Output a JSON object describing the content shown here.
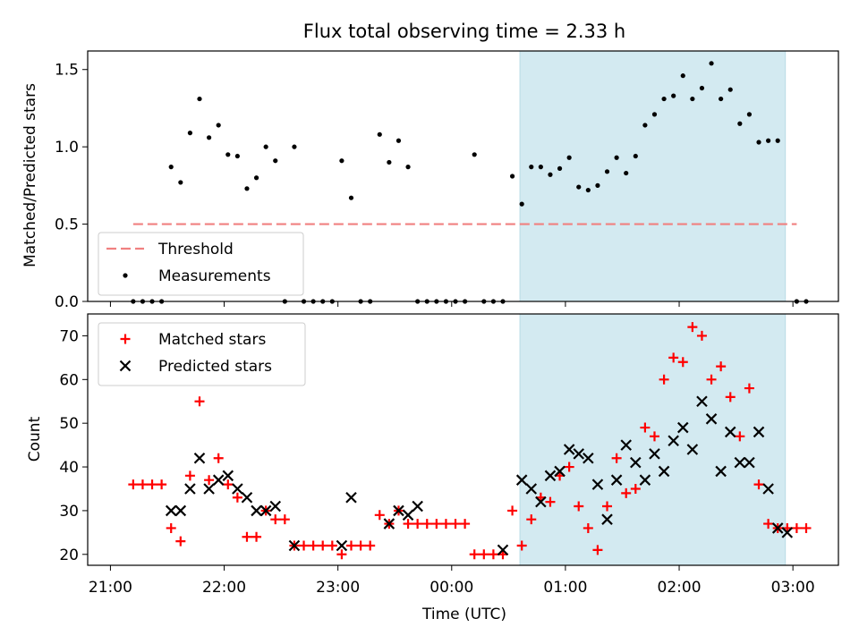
{
  "chart_data": [
    {
      "type": "scatter",
      "title": "Flux total observing time = 2.33 h",
      "ylabel": "Matched/Predicted stars",
      "xlabel": "",
      "ylim": [
        0,
        1.62
      ],
      "yticks": [
        0.0,
        0.5,
        1.0,
        1.5
      ],
      "ytick_labels": [
        "0.0",
        "0.5",
        "1.0",
        "1.5"
      ],
      "x_axis_hours_range": [
        -3.2,
        3.4
      ],
      "shaded_region": {
        "from": "00:36",
        "to": "02:56",
        "color": "#d3eaf1"
      },
      "legend": {
        "position": "lower-left",
        "entries": [
          "Threshold",
          "Measurements"
        ]
      },
      "series": [
        {
          "name": "Threshold",
          "kind": "dashed-line",
          "color": "#f08080",
          "x": [
            "21:12",
            "03:02"
          ],
          "y": [
            0.5,
            0.5
          ]
        },
        {
          "name": "Measurements",
          "kind": "points",
          "color": "#000000",
          "x": [
            "21:12",
            "21:17",
            "21:22",
            "21:27",
            "21:32",
            "21:37",
            "21:42",
            "21:47",
            "21:52",
            "21:57",
            "22:02",
            "22:07",
            "22:12",
            "22:17",
            "22:22",
            "22:27",
            "22:32",
            "22:37",
            "22:42",
            "22:47",
            "22:52",
            "22:57",
            "23:02",
            "23:07",
            "23:12",
            "23:17",
            "23:22",
            "23:27",
            "23:32",
            "23:37",
            "23:42",
            "23:47",
            "23:52",
            "23:57",
            "00:02",
            "00:07",
            "00:12",
            "00:17",
            "00:22",
            "00:27",
            "00:32",
            "00:37",
            "00:42",
            "00:47",
            "00:52",
            "00:57",
            "01:02",
            "01:07",
            "01:12",
            "01:17",
            "01:22",
            "01:27",
            "01:32",
            "01:37",
            "01:42",
            "01:47",
            "01:52",
            "01:57",
            "02:02",
            "02:07",
            "02:12",
            "02:17",
            "02:22",
            "02:27",
            "02:32",
            "02:37",
            "02:42",
            "02:47",
            "02:52",
            "02:57",
            "03:02",
            "03:07"
          ],
          "y": [
            0,
            0,
            0,
            0,
            0.87,
            0.77,
            1.09,
            1.31,
            1.06,
            1.14,
            0.95,
            0.94,
            0.73,
            0.8,
            1.0,
            0.91,
            0,
            1.0,
            0,
            0,
            0,
            0,
            0.91,
            0.67,
            0,
            0,
            1.08,
            0.9,
            1.04,
            0.87,
            0,
            0,
            0,
            0,
            0,
            0,
            0.95,
            0,
            0,
            0,
            0.81,
            0.63,
            0.87,
            0.87,
            0.82,
            0.86,
            0.93,
            0.74,
            0.72,
            0.75,
            0.84,
            0.93,
            0.83,
            0.94,
            1.14,
            1.21,
            1.31,
            1.33,
            1.46,
            1.31,
            1.38,
            1.54,
            1.31,
            1.37,
            1.15,
            1.21,
            1.03,
            1.04,
            1.04,
            null,
            0,
            0
          ]
        }
      ]
    },
    {
      "type": "scatter",
      "title": "",
      "ylabel": "Count",
      "xlabel": "Time (UTC)",
      "ylim": [
        17.5,
        75
      ],
      "yticks": [
        20,
        30,
        40,
        50,
        60,
        70
      ],
      "ytick_labels": [
        "20",
        "30",
        "40",
        "50",
        "60",
        "70"
      ],
      "x_axis_hours_range": [
        -3.2,
        3.4
      ],
      "xticks": [
        "21:00",
        "22:00",
        "23:00",
        "00:00",
        "01:00",
        "02:00",
        "03:00"
      ],
      "shaded_region": {
        "from": "00:36",
        "to": "02:56",
        "color": "#d3eaf1"
      },
      "legend": {
        "position": "upper-left",
        "entries": [
          "Matched stars",
          "Predicted stars"
        ]
      },
      "series": [
        {
          "name": "Matched stars",
          "marker": "+",
          "color": "#ff0000",
          "x": [
            "21:12",
            "21:17",
            "21:22",
            "21:27",
            "21:32",
            "21:37",
            "21:42",
            "21:47",
            "21:52",
            "21:57",
            "22:02",
            "22:07",
            "22:12",
            "22:17",
            "22:22",
            "22:27",
            "22:32",
            "22:37",
            "22:42",
            "22:47",
            "22:52",
            "22:57",
            "23:02",
            "23:07",
            "23:12",
            "23:17",
            "23:22",
            "23:27",
            "23:32",
            "23:37",
            "23:42",
            "23:47",
            "23:52",
            "23:57",
            "00:02",
            "00:07",
            "00:12",
            "00:17",
            "00:22",
            "00:27",
            "00:32",
            "00:37",
            "00:42",
            "00:47",
            "00:52",
            "00:57",
            "01:02",
            "01:07",
            "01:12",
            "01:17",
            "01:22",
            "01:27",
            "01:32",
            "01:37",
            "01:42",
            "01:47",
            "01:52",
            "01:57",
            "02:02",
            "02:07",
            "02:12",
            "02:17",
            "02:22",
            "02:27",
            "02:32",
            "02:37",
            "02:42",
            "02:47",
            "02:52",
            "02:57",
            "03:02",
            "03:07"
          ],
          "y": [
            36,
            36,
            36,
            36,
            26,
            23,
            38,
            55,
            37,
            42,
            36,
            33,
            24,
            24,
            30,
            28,
            28,
            22,
            22,
            22,
            22,
            22,
            20,
            22,
            22,
            22,
            29,
            27,
            30,
            27,
            27,
            27,
            27,
            27,
            27,
            27,
            20,
            20,
            20,
            20,
            30,
            22,
            28,
            33,
            32,
            38,
            40,
            31,
            26,
            21,
            31,
            42,
            34,
            35,
            49,
            47,
            60,
            65,
            64,
            72,
            70,
            60,
            63,
            56,
            47,
            58,
            36,
            27,
            26,
            26,
            26,
            26
          ]
        },
        {
          "name": "Predicted stars",
          "marker": "x",
          "color": "#000000",
          "x": [
            "21:32",
            "21:37",
            "21:42",
            "21:47",
            "21:52",
            "21:57",
            "22:02",
            "22:07",
            "22:12",
            "22:17",
            "22:22",
            "22:27",
            "22:37",
            "23:02",
            "23:07",
            "23:27",
            "23:32",
            "23:37",
            "23:42",
            "00:27",
            "00:37",
            "00:42",
            "00:47",
            "00:52",
            "00:57",
            "01:02",
            "01:07",
            "01:12",
            "01:17",
            "01:22",
            "01:27",
            "01:32",
            "01:37",
            "01:42",
            "01:47",
            "01:52",
            "01:57",
            "02:02",
            "02:07",
            "02:12",
            "02:17",
            "02:22",
            "02:27",
            "02:32",
            "02:37",
            "02:42",
            "02:47",
            "02:52",
            "02:57"
          ],
          "y": [
            30,
            30,
            35,
            42,
            35,
            37,
            38,
            35,
            33,
            30,
            30,
            31,
            22,
            22,
            33,
            27,
            30,
            29,
            31,
            21,
            37,
            35,
            32,
            38,
            39,
            44,
            43,
            42,
            36,
            28,
            37,
            45,
            41,
            37,
            43,
            39,
            46,
            49,
            44,
            55,
            51,
            39,
            48,
            41,
            41,
            48,
            35,
            26,
            25
          ]
        }
      ]
    }
  ]
}
